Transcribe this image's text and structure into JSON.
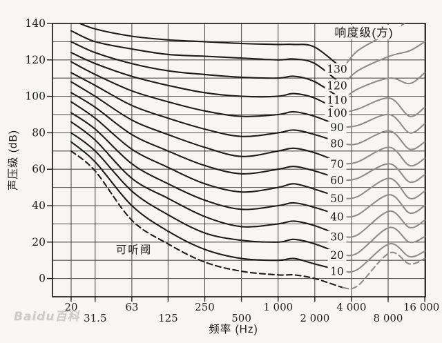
{
  "figure": {
    "legend_title": "响度级(方)",
    "threshold_label": "可听阈",
    "xlabel": "频率 (Hz)",
    "ylabel": "声压级 (dB)",
    "watermark": "Baidu百科"
  },
  "chart_data": {
    "type": "line",
    "x_scale": "log",
    "xlabel": "频率 (Hz)",
    "ylabel": "声压级 (dB)",
    "xlim_hz": [
      13,
      16000
    ],
    "ylim_db": [
      -10,
      140
    ],
    "grid": "on",
    "legend_title": "响度级(方)",
    "curve_label_x_hz": 3400,
    "freq_anchors_hz": [
      20,
      31.5,
      63,
      125,
      250,
      500,
      1000,
      1350,
      2000,
      3400,
      4500,
      8200,
      12000,
      16000
    ],
    "x_ticks": [
      {
        "label": "20",
        "f": 20,
        "row": 1
      },
      {
        "label": "31.5",
        "f": 31.5,
        "row": 2
      },
      {
        "label": "63",
        "f": 63,
        "row": 1
      },
      {
        "label": "125",
        "f": 125,
        "row": 2
      },
      {
        "label": "250",
        "f": 250,
        "row": 1
      },
      {
        "label": "500",
        "f": 500,
        "row": 2
      },
      {
        "label": "1 000",
        "f": 1000,
        "row": 1
      },
      {
        "label": "2 000",
        "f": 2000,
        "row": 2
      },
      {
        "label": "4 000",
        "f": 4000,
        "row": 1
      },
      {
        "label": "8 000",
        "f": 8000,
        "row": 2
      },
      {
        "label": "16 000",
        "f": 16000,
        "row": 1
      }
    ],
    "y_tick_labels_db": [
      140,
      120,
      100,
      80,
      60,
      40,
      20,
      0
    ],
    "y_grid_step_db": 10,
    "series": [
      {
        "name": "130",
        "phon": 130,
        "values": [
          142,
          137,
          133,
          131,
          130,
          129,
          128.5,
          128.5,
          127,
          115,
          125,
          135,
          142,
          150
        ]
      },
      {
        "name": "120",
        "phon": 120,
        "values": [
          136,
          130,
          126,
          123,
          122,
          121,
          120,
          120.5,
          118,
          106,
          114,
          122,
          125,
          130
        ]
      },
      {
        "name": "110",
        "phon": 110,
        "values": [
          130,
          124,
          118,
          114,
          112,
          110.5,
          110,
          111,
          108,
          98,
          104,
          110,
          107,
          113
        ]
      },
      {
        "name": "100",
        "phon": 100,
        "values": [
          124,
          118,
          111,
          106,
          102,
          100,
          100,
          101.5,
          99,
          91,
          93,
          99,
          89,
          94
        ]
      },
      {
        "name": "90",
        "phon": 90,
        "values": [
          119,
          112,
          103,
          97,
          92,
          89,
          90,
          91.5,
          89,
          83,
          84,
          90,
          80,
          85
        ]
      },
      {
        "name": "80",
        "phon": 80,
        "values": [
          113,
          106,
          95,
          88,
          82,
          78,
          80,
          81.5,
          79,
          74,
          74,
          81,
          71,
          75
        ]
      },
      {
        "name": "70",
        "phon": 70,
        "values": [
          108,
          100,
          87,
          79,
          72,
          67,
          70,
          71.5,
          69,
          63,
          64,
          72,
          62,
          66
        ]
      },
      {
        "name": "60",
        "phon": 60,
        "values": [
          102,
          94,
          79,
          70,
          62,
          57.5,
          60,
          61.5,
          59,
          54,
          55,
          63,
          53,
          57
        ]
      },
      {
        "name": "50",
        "phon": 50,
        "values": [
          97,
          88,
          71,
          61,
          52,
          47.5,
          50,
          52,
          49,
          44,
          45,
          55,
          44,
          48
        ]
      },
      {
        "name": "40",
        "phon": 40,
        "values": [
          91,
          82,
          63,
          52,
          43,
          38,
          40,
          41.5,
          39,
          34,
          35,
          46,
          36,
          40
        ]
      },
      {
        "name": "30",
        "phon": 30,
        "values": [
          86,
          76,
          55,
          44,
          34,
          28.5,
          30,
          31.5,
          29,
          23,
          24,
          37,
          28,
          32
        ]
      },
      {
        "name": "20",
        "phon": 20,
        "values": [
          80,
          70,
          48,
          35,
          25,
          21,
          20,
          21.5,
          19,
          13,
          14,
          28,
          20,
          23
        ]
      },
      {
        "name": "10",
        "phon": 10,
        "values": [
          75,
          64,
          40,
          26,
          16,
          11,
          10,
          11,
          8,
          4,
          5,
          19,
          12,
          15
        ]
      }
    ],
    "threshold_series": {
      "name": "可听阈",
      "dashed": true,
      "values": [
        70,
        59,
        32,
        19,
        9,
        4,
        2,
        2,
        0,
        -5,
        -4,
        14,
        8,
        11
      ]
    }
  },
  "colors": {
    "paper": "#f7f6f2",
    "ink": "#1c1c1c",
    "faint_ink": "#8f8d8a",
    "grid": "#333333",
    "watermark": "#c9c7c2"
  }
}
